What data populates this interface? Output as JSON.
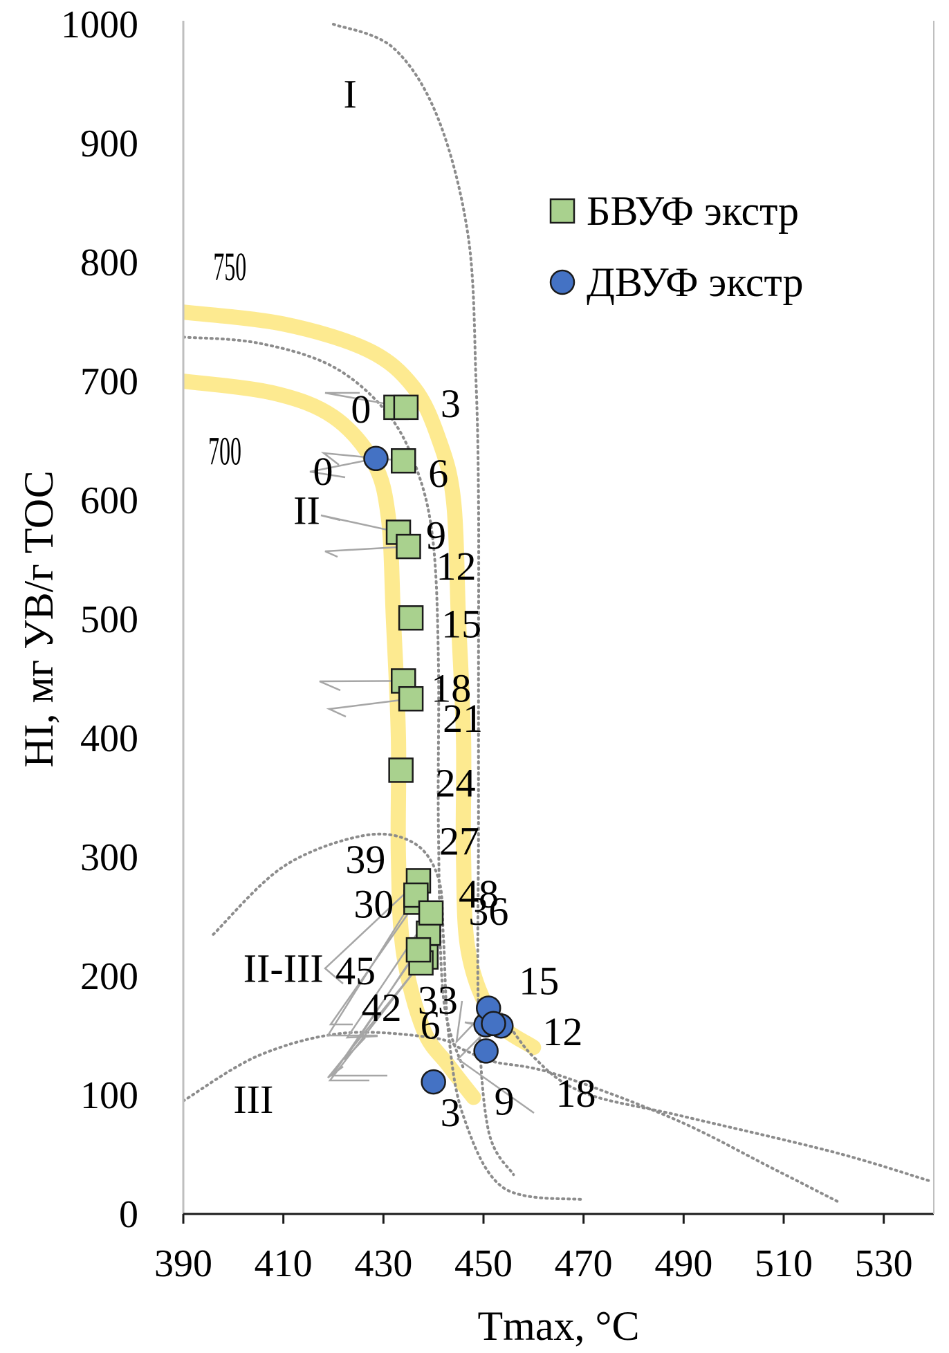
{
  "chart_data": {
    "type": "scatter",
    "xlabel": "Tmax, °C",
    "ylabel": "HI, мг УВ/г ТОС",
    "xlim": [
      390,
      540
    ],
    "ylim": [
      0,
      1000
    ],
    "x_ticks": [
      390,
      410,
      430,
      450,
      470,
      490,
      510,
      530
    ],
    "y_ticks": [
      0,
      100,
      200,
      300,
      400,
      500,
      600,
      700,
      800,
      900,
      1000
    ],
    "legend_position": "top-right",
    "series": [
      {
        "name": "БВУФ экстр",
        "marker": "square",
        "color": "#a9d18e",
        "points": [
          {
            "x": 432.5,
            "y": 678,
            "label": "0"
          },
          {
            "x": 434.5,
            "y": 678,
            "label": "3"
          },
          {
            "x": 434.0,
            "y": 633,
            "label": "6"
          },
          {
            "x": 433.0,
            "y": 573,
            "label": "9"
          },
          {
            "x": 435.0,
            "y": 561,
            "label": "12"
          },
          {
            "x": 435.5,
            "y": 501,
            "label": "15"
          },
          {
            "x": 434.0,
            "y": 448,
            "label": "18"
          },
          {
            "x": 435.5,
            "y": 433,
            "label": "21"
          },
          {
            "x": 433.5,
            "y": 373,
            "label": "24"
          },
          {
            "x": 437.0,
            "y": 280,
            "label": "27"
          },
          {
            "x": 436.5,
            "y": 262,
            "label": "30"
          },
          {
            "x": 438.5,
            "y": 216,
            "label": "33"
          },
          {
            "x": 439.0,
            "y": 236,
            "label": "36"
          },
          {
            "x": 436.5,
            "y": 268,
            "label": "39"
          },
          {
            "x": 437.5,
            "y": 211,
            "label": "42"
          },
          {
            "x": 437.0,
            "y": 222,
            "label": "45"
          },
          {
            "x": 439.5,
            "y": 253,
            "label": "48"
          }
        ]
      },
      {
        "name": "ДВУФ экстр",
        "marker": "circle",
        "color": "#4472c4",
        "points": [
          {
            "x": 428.5,
            "y": 635,
            "label": "0"
          },
          {
            "x": 440.0,
            "y": 111,
            "label": "3"
          },
          {
            "x": 450.5,
            "y": 159,
            "label": "6"
          },
          {
            "x": 450.5,
            "y": 137,
            "label": "9"
          },
          {
            "x": 453.5,
            "y": 158,
            "label": "12"
          },
          {
            "x": 451.0,
            "y": 173,
            "label": "15"
          },
          {
            "x": 452.0,
            "y": 160,
            "label": "18"
          }
        ]
      }
    ],
    "annotations": [
      "I",
      "II",
      "II-III",
      "III",
      "750",
      "700"
    ],
    "boundary_curves": {
      "I_II_dotted": [
        [
          420,
          1000
        ],
        [
          432,
          980
        ],
        [
          441,
          920
        ],
        [
          447,
          820
        ],
        [
          448.5,
          700
        ],
        [
          449,
          600
        ],
        [
          449,
          450
        ],
        [
          449,
          320
        ],
        [
          449,
          170
        ],
        [
          451,
          70
        ],
        [
          456,
          33
        ]
      ],
      "II_upper_dotted": [
        [
          390,
          737
        ],
        [
          405,
          732
        ],
        [
          420,
          712
        ],
        [
          431,
          672
        ],
        [
          437,
          622
        ],
        [
          440,
          562
        ],
        [
          441,
          462
        ],
        [
          441,
          322
        ],
        [
          442,
          182
        ],
        [
          446,
          122
        ]
      ],
      "II_III_dotted": [
        [
          396,
          235
        ],
        [
          410,
          292
        ],
        [
          426,
          318
        ],
        [
          436,
          312
        ],
        [
          441,
          282
        ],
        [
          442,
          232
        ],
        [
          443,
          152
        ],
        [
          446,
          82
        ],
        [
          454,
          22
        ],
        [
          470,
          12
        ]
      ],
      "III_dotted": [
        [
          390,
          95
        ],
        [
          405,
          133
        ],
        [
          422,
          152
        ],
        [
          440,
          148
        ],
        [
          446,
          138
        ],
        [
          452,
          128
        ],
        [
          464,
          118
        ],
        [
          488,
          80
        ],
        [
          507,
          40
        ],
        [
          521,
          10
        ]
      ],
      "right_tail_dotted": [
        [
          453,
          172
        ],
        [
          460,
          132
        ],
        [
          470,
          102
        ],
        [
          490,
          82
        ],
        [
          520,
          52
        ],
        [
          539,
          28
        ]
      ],
      "iso_750": [
        [
          390,
          758
        ],
        [
          410,
          748
        ],
        [
          427,
          726
        ],
        [
          436,
          695
        ],
        [
          441,
          652
        ],
        [
          444,
          600
        ],
        [
          445,
          500
        ],
        [
          446,
          400
        ],
        [
          446,
          300
        ],
        [
          447,
          220
        ],
        [
          452,
          165
        ],
        [
          460,
          140
        ]
      ],
      "iso_700": [
        [
          390,
          700
        ],
        [
          408,
          690
        ],
        [
          420,
          670
        ],
        [
          428,
          632
        ],
        [
          431,
          585
        ],
        [
          432,
          500
        ],
        [
          433,
          400
        ],
        [
          433,
          300
        ],
        [
          434,
          220
        ],
        [
          438,
          155
        ],
        [
          443,
          125
        ],
        [
          448,
          98
        ]
      ]
    }
  }
}
